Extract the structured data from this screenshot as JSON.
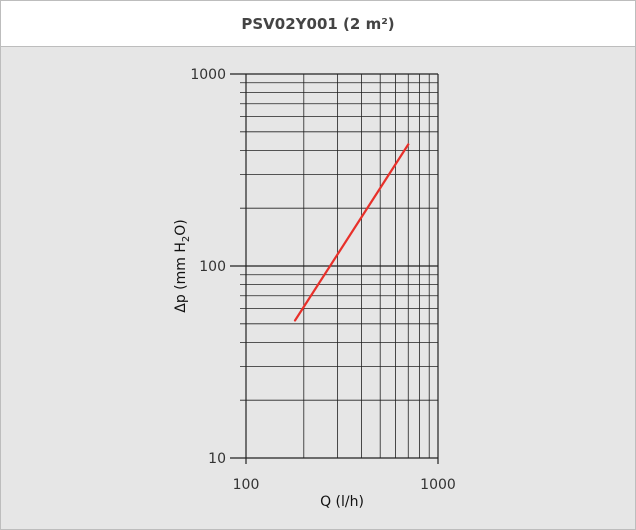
{
  "chart_data": {
    "type": "line",
    "title": "PSV02Y001 (2 m²)",
    "xlabel": "Q (l/h)",
    "ylabel": "Δp (mm H₂O)",
    "ylabel_parts": {
      "main": "Δp (mm H",
      "sub": "2",
      "end": "O)"
    },
    "x_scale": "log",
    "y_scale": "log",
    "xlim": [
      100,
      1000
    ],
    "ylim": [
      10,
      1000
    ],
    "x_ticks": [
      {
        "value": 100,
        "label": "100"
      },
      {
        "value": 1000,
        "label": "1000"
      }
    ],
    "y_ticks": [
      {
        "value": 10,
        "label": "10"
      },
      {
        "value": 100,
        "label": "100"
      },
      {
        "value": 1000,
        "label": "1000"
      }
    ],
    "grid": true,
    "series": [
      {
        "color": "#e8302a",
        "x": [
          180,
          400,
          700
        ],
        "y": [
          52,
          180,
          430
        ]
      }
    ]
  }
}
